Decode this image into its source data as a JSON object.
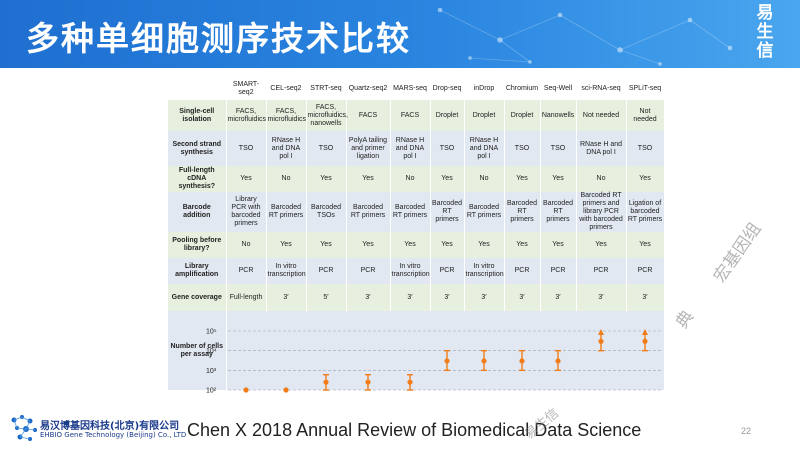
{
  "header": {
    "title": "多种单细胞测序技术比较",
    "brand_lines": [
      "易",
      "生",
      "信"
    ],
    "colors": {
      "bg": "#2a86e0",
      "text": "#ffffff"
    }
  },
  "table": {
    "methods": [
      "SMART-seq2",
      "CEL-seq2",
      "STRT-seq",
      "Quartz-seq2",
      "MARS-seq",
      "Drop-seq",
      "inDrop",
      "Chromium",
      "Seq-Well",
      "sci-RNA-seq",
      "SPLiT-seq"
    ],
    "rows": [
      {
        "label": "Single-cell isolation",
        "color": "green",
        "values": [
          "FACS, microfluidics",
          "FACS, microfluidics",
          "FACS, microfluidics, nanowells",
          "FACS",
          "FACS",
          "Droplet",
          "Droplet",
          "Droplet",
          "Nanowells",
          "Not needed",
          "Not needed"
        ]
      },
      {
        "label": "Second strand synthesis",
        "color": "blue",
        "values": [
          "TSO",
          "RNase H and DNA pol I",
          "TSO",
          "PolyA tailing and primer ligation",
          "RNase H and DNA pol I",
          "TSO",
          "RNase H and DNA pol I",
          "TSO",
          "TSO",
          "RNase H and DNA pol I",
          "TSO"
        ]
      },
      {
        "label": "Full-length cDNA synthesis?",
        "color": "green",
        "values": [
          "Yes",
          "No",
          "Yes",
          "Yes",
          "No",
          "Yes",
          "No",
          "Yes",
          "Yes",
          "No",
          "Yes"
        ]
      },
      {
        "label": "Barcode addition",
        "color": "blue",
        "values": [
          "Library PCR with barcoded primers",
          "Barcoded RT primers",
          "Barcoded TSOs",
          "Barcoded RT primers",
          "Barcoded RT primers",
          "Barcoded RT primers",
          "Barcoded RT primers",
          "Barcoded RT primers",
          "Barcoded RT primers",
          "Barcoded RT primers and library PCR with barcoded primers",
          "Ligation of barcoded RT primers"
        ]
      },
      {
        "label": "Pooling before library?",
        "color": "green",
        "values": [
          "No",
          "Yes",
          "Yes",
          "Yes",
          "Yes",
          "Yes",
          "Yes",
          "Yes",
          "Yes",
          "Yes",
          "Yes"
        ]
      },
      {
        "label": "Library amplification",
        "color": "blue",
        "values": [
          "PCR",
          "In vitro transcription",
          "PCR",
          "PCR",
          "In vitro transcription",
          "PCR",
          "In vitro transcription",
          "PCR",
          "PCR",
          "PCR",
          "PCR"
        ]
      },
      {
        "label": "Gene coverage",
        "color": "green",
        "values": [
          "Full-length",
          "3′",
          "5′",
          "3′",
          "3′",
          "3′",
          "3′",
          "3′",
          "3′",
          "3′",
          "3′"
        ]
      }
    ],
    "colors": {
      "green": "#e7f0df",
      "blue": "#e2e8f1",
      "marker": "#f07d1a"
    }
  },
  "chart_data": {
    "type": "scatter",
    "ylabel": "Number of cells per assay",
    "y_scale": "log",
    "y_ticks": [
      "10²",
      "10³",
      "10⁴",
      "10⁵"
    ],
    "ylim": [
      100,
      100000
    ],
    "categories": [
      "SMART-seq2",
      "CEL-seq2",
      "STRT-seq",
      "Quartz-seq2",
      "MARS-seq",
      "Drop-seq",
      "inDrop",
      "Chromium",
      "Seq-Well",
      "sci-RNA-seq",
      "SPLiT-seq"
    ],
    "points": [
      {
        "center": 100,
        "low": null,
        "high": null,
        "arrow_up": false
      },
      {
        "center": 100,
        "low": null,
        "high": null,
        "arrow_up": false
      },
      {
        "center": 250,
        "low": 100,
        "high": 600,
        "arrow_up": false
      },
      {
        "center": 250,
        "low": 100,
        "high": 600,
        "arrow_up": false
      },
      {
        "center": 250,
        "low": 100,
        "high": 600,
        "arrow_up": false
      },
      {
        "center": 3000,
        "low": 1000,
        "high": 10000,
        "arrow_up": false
      },
      {
        "center": 3000,
        "low": 1000,
        "high": 10000,
        "arrow_up": false
      },
      {
        "center": 3000,
        "low": 1000,
        "high": 10000,
        "arrow_up": false
      },
      {
        "center": 3000,
        "low": 1000,
        "high": 10000,
        "arrow_up": false
      },
      {
        "center": 30000,
        "low": 10000,
        "high": 100000,
        "arrow_up": true
      },
      {
        "center": 30000,
        "low": 10000,
        "high": 100000,
        "arrow_up": true
      }
    ]
  },
  "footer": {
    "company_cn": "易汉博基因科技(北京)有限公司",
    "company_en": "EHBIO Gene Technology (Beijing) Co., LTD",
    "citation": "Chen X 2018 Annual Review of Biomedical Data Science",
    "page_number": "22"
  },
  "watermarks": [
    "宏基因组",
    "典",
    "易生信"
  ]
}
